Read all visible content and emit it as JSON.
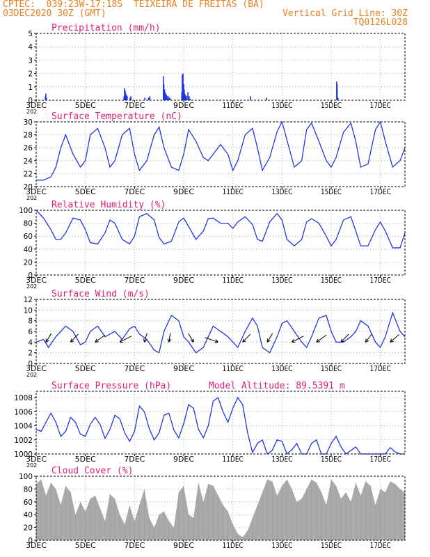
{
  "header": {
    "line1": "CPTEC:  039:23W-17:18S  TEIXEIRA DE FREITAS (BA)",
    "line2_left": "03DEC2020 30Z (GMT)",
    "line2_right": "Vertical Grid Line: 30Z",
    "code": "TQ0126L028"
  },
  "colors": {
    "header": "#e8801f",
    "panel_title": "#e0207a",
    "line": "#2236e0",
    "bars": "#2236e0",
    "cloud": "#aaaaaa",
    "grid": "#9a9a9a"
  },
  "x_axis": {
    "tick_labels": [
      "3DEC",
      "5DEC",
      "7DEC",
      "9DEC",
      "11DEC",
      "13DEC",
      "15DEC",
      "17DEC"
    ],
    "tick_days": [
      0,
      2,
      4,
      6,
      8,
      10,
      12,
      14
    ],
    "range_days": [
      0,
      15
    ],
    "sub_label": "202"
  },
  "chart_data": [
    {
      "type": "bar",
      "title": "Precipitation (mm/h)",
      "ylim": [
        0,
        5
      ],
      "yticks": [
        0,
        1,
        2,
        3,
        4,
        5
      ],
      "x": [
        0.35,
        0.37,
        0.39,
        3.55,
        3.57,
        3.6,
        3.62,
        3.65,
        3.68,
        3.8,
        3.83,
        4.4,
        4.55,
        4.6,
        5.15,
        5.17,
        5.2,
        5.22,
        5.25,
        5.28,
        5.3,
        5.35,
        5.4,
        5.45,
        5.9,
        5.92,
        5.95,
        5.98,
        6.0,
        6.02,
        6.05,
        6.1,
        6.15,
        6.2,
        6.25,
        8.7,
        9.35,
        12.2,
        12.22,
        12.25
      ],
      "values": [
        0.3,
        0.5,
        0.2,
        0.3,
        0.9,
        0.7,
        0.5,
        0.4,
        0.3,
        0.2,
        0.3,
        0.2,
        0.2,
        0.3,
        1.8,
        1.2,
        0.8,
        0.6,
        0.5,
        0.4,
        0.3,
        0.3,
        0.2,
        0.1,
        0.6,
        1.9,
        2.0,
        1.2,
        0.8,
        0.5,
        0.4,
        0.3,
        0.6,
        0.3,
        0.1,
        0.3,
        0.2,
        1.4,
        1.2,
        0.2
      ]
    },
    {
      "type": "line",
      "title": "Surface Temperature (nC)",
      "ylim": [
        20,
        30
      ],
      "yticks": [
        20,
        22,
        24,
        26,
        28,
        30
      ],
      "x": [
        0,
        0.3,
        0.6,
        0.8,
        1.0,
        1.2,
        1.5,
        1.8,
        2.0,
        2.2,
        2.5,
        2.8,
        3.0,
        3.2,
        3.5,
        3.8,
        4.0,
        4.2,
        4.5,
        4.8,
        5.0,
        5.2,
        5.5,
        5.8,
        6.0,
        6.2,
        6.5,
        6.8,
        7.0,
        7.2,
        7.5,
        7.8,
        8.0,
        8.2,
        8.5,
        8.8,
        9.0,
        9.2,
        9.5,
        9.8,
        10.0,
        10.2,
        10.5,
        10.8,
        11.0,
        11.2,
        11.5,
        11.8,
        12.0,
        12.2,
        12.5,
        12.8,
        13.0,
        13.2,
        13.5,
        13.8,
        14.0,
        14.2,
        14.5,
        14.8,
        15.0
      ],
      "values": [
        21,
        21,
        21.5,
        23,
        26,
        28,
        25,
        23,
        24,
        28,
        29,
        26,
        23,
        24,
        28,
        29,
        25,
        22.5,
        24,
        28,
        29.2,
        26,
        23,
        22.5,
        25,
        28.8,
        27,
        24.5,
        24,
        25,
        26.5,
        25,
        22.5,
        24,
        28,
        29,
        26,
        22.5,
        24.5,
        28.5,
        30,
        27.2,
        23,
        24,
        28.8,
        29.8,
        27,
        24,
        23,
        24.5,
        28.4,
        29.8,
        27,
        23,
        23.5,
        28.8,
        30,
        27,
        23,
        24,
        26
      ]
    },
    {
      "type": "line",
      "title": "Relative Humidity (%)",
      "ylim": [
        0,
        100
      ],
      "yticks": [
        0,
        20,
        40,
        60,
        80,
        100
      ],
      "x": [
        0,
        0.3,
        0.6,
        0.8,
        1.0,
        1.2,
        1.5,
        1.8,
        2.0,
        2.2,
        2.5,
        2.8,
        3.0,
        3.2,
        3.5,
        3.8,
        4.0,
        4.2,
        4.5,
        4.8,
        5.0,
        5.2,
        5.5,
        5.8,
        6.0,
        6.2,
        6.5,
        6.8,
        7.0,
        7.2,
        7.5,
        7.8,
        8.0,
        8.2,
        8.5,
        8.8,
        9.0,
        9.2,
        9.5,
        9.8,
        10.0,
        10.2,
        10.5,
        10.8,
        11.0,
        11.2,
        11.5,
        11.8,
        12.0,
        12.2,
        12.5,
        12.8,
        13.0,
        13.2,
        13.5,
        13.8,
        14.0,
        14.2,
        14.5,
        14.8,
        15.0
      ],
      "values": [
        100,
        88,
        70,
        55,
        55,
        65,
        88,
        85,
        70,
        50,
        48,
        65,
        85,
        80,
        55,
        48,
        60,
        90,
        95,
        85,
        58,
        48,
        52,
        82,
        88,
        75,
        55,
        68,
        87,
        88,
        80,
        80,
        72,
        82,
        90,
        78,
        55,
        52,
        82,
        95,
        85,
        55,
        45,
        55,
        82,
        87,
        80,
        60,
        45,
        55,
        85,
        90,
        68,
        45,
        45,
        70,
        82,
        68,
        42,
        42,
        65
      ]
    },
    {
      "type": "line",
      "title": "Surface Wind (m/s)",
      "ylim": [
        0,
        12
      ],
      "yticks": [
        0,
        2,
        4,
        6,
        8,
        10,
        12
      ],
      "x": [
        0,
        0.3,
        0.5,
        0.8,
        1.0,
        1.2,
        1.5,
        1.8,
        2.0,
        2.2,
        2.5,
        2.8,
        3.0,
        3.2,
        3.5,
        3.8,
        4.0,
        4.2,
        4.5,
        4.8,
        5.0,
        5.2,
        5.5,
        5.8,
        6.0,
        6.2,
        6.5,
        6.8,
        7.0,
        7.2,
        7.5,
        7.8,
        8.0,
        8.2,
        8.5,
        8.8,
        9.0,
        9.2,
        9.5,
        9.8,
        10.0,
        10.2,
        10.5,
        10.8,
        11.0,
        11.2,
        11.5,
        11.8,
        12.0,
        12.2,
        12.5,
        12.8,
        13.0,
        13.2,
        13.5,
        13.8,
        14.0,
        14.2,
        14.5,
        14.8,
        15.0
      ],
      "values": [
        4,
        4.5,
        3,
        5,
        6,
        7,
        6,
        3.5,
        4,
        6,
        7,
        5,
        5.5,
        6,
        4.5,
        6.5,
        7,
        5.5,
        4.5,
        2.5,
        2,
        6,
        9,
        8,
        5,
        4,
        2,
        3,
        5,
        7,
        6,
        5,
        4,
        3,
        6,
        8.5,
        7,
        3,
        2,
        5,
        7.5,
        8,
        6,
        4,
        3,
        5,
        8.5,
        9,
        6,
        4,
        4,
        5,
        6,
        8,
        7,
        4,
        3,
        5,
        9.5,
        6,
        5
      ]
    },
    {
      "type": "line",
      "title": "Surface Pressure (hPa)",
      "ylim": [
        1000,
        1008.9
      ],
      "yticks": [
        1000,
        1002,
        1004,
        1006,
        1008
      ],
      "x": [
        0,
        0.2,
        0.4,
        0.6,
        0.8,
        1.0,
        1.2,
        1.4,
        1.6,
        1.8,
        2.0,
        2.2,
        2.4,
        2.6,
        2.8,
        3.0,
        3.2,
        3.4,
        3.6,
        3.8,
        4.0,
        4.2,
        4.4,
        4.6,
        4.8,
        5.0,
        5.2,
        5.4,
        5.6,
        5.8,
        6.0,
        6.2,
        6.4,
        6.6,
        6.8,
        7.0,
        7.2,
        7.4,
        7.6,
        7.8,
        8.0,
        8.2,
        8.4,
        8.6,
        8.8,
        9.0,
        9.2,
        9.4,
        9.6,
        9.8,
        10.0,
        10.2,
        10.4,
        10.6,
        10.8,
        11.0,
        11.2,
        11.4,
        11.6,
        11.8,
        12.0,
        12.2,
        12.4,
        12.6,
        12.8,
        13.0,
        13.2,
        13.4,
        13.6,
        13.8,
        14.0,
        14.2,
        14.4,
        14.6,
        14.8,
        15.0
      ],
      "values": [
        1003.5,
        1003.2,
        1004.5,
        1005.8,
        1004.5,
        1002.5,
        1003.2,
        1005.2,
        1004.5,
        1002.8,
        1002.5,
        1004.2,
        1005.2,
        1004.2,
        1002.2,
        1003.5,
        1005.5,
        1005,
        1003,
        1001.8,
        1003.2,
        1006.8,
        1006,
        1003.6,
        1002,
        1003,
        1005.5,
        1005.8,
        1003.4,
        1002.3,
        1004.3,
        1007,
        1006.5,
        1003.5,
        1002.3,
        1004,
        1007.5,
        1008,
        1006,
        1004.5,
        1006.5,
        1008,
        1007,
        1003,
        1000.2,
        1001.5,
        1002,
        1000,
        1000.5,
        1002,
        1001.8,
        999.2,
        1000.6,
        1001.5,
        999,
        1000,
        1001.5,
        1002,
        1000,
        999.5,
        1001.5,
        1002.5,
        1001,
        999,
        1000.5,
        1001,
        999.2,
        999,
        999.5,
        999.8,
        999,
        999.2,
        1000.9,
        1000.3,
        999.5,
        999
      ]
    },
    {
      "type": "area",
      "title": "Cloud Cover (%)",
      "ylim": [
        0,
        100
      ],
      "yticks": [
        0,
        20,
        40,
        60,
        80,
        100
      ],
      "x": [
        0,
        0.2,
        0.4,
        0.6,
        0.8,
        1.0,
        1.2,
        1.4,
        1.6,
        1.8,
        2.0,
        2.2,
        2.4,
        2.6,
        2.8,
        3.0,
        3.2,
        3.4,
        3.6,
        3.8,
        4.0,
        4.2,
        4.4,
        4.6,
        4.8,
        5.0,
        5.2,
        5.4,
        5.6,
        5.8,
        6.0,
        6.2,
        6.4,
        6.6,
        6.8,
        7.0,
        7.2,
        7.4,
        7.6,
        7.8,
        8.0,
        8.2,
        8.4,
        8.6,
        8.8,
        9.0,
        9.2,
        9.4,
        9.6,
        9.8,
        10.0,
        10.2,
        10.4,
        10.6,
        10.8,
        11.0,
        11.2,
        11.4,
        11.6,
        11.8,
        12.0,
        12.2,
        12.4,
        12.6,
        12.8,
        13.0,
        13.2,
        13.4,
        13.6,
        13.8,
        14.0,
        14.2,
        14.4,
        14.6,
        14.8,
        15.0
      ],
      "values": [
        88,
        95,
        70,
        90,
        80,
        55,
        85,
        75,
        40,
        60,
        45,
        65,
        70,
        50,
        30,
        72,
        65,
        40,
        25,
        55,
        30,
        55,
        80,
        35,
        20,
        40,
        45,
        30,
        20,
        75,
        85,
        40,
        35,
        90,
        60,
        88,
        85,
        70,
        55,
        45,
        25,
        10,
        5,
        15,
        35,
        55,
        75,
        95,
        92,
        70,
        85,
        95,
        80,
        60,
        65,
        80,
        95,
        90,
        75,
        55,
        95,
        85,
        65,
        75,
        60,
        90,
        70,
        92,
        85,
        55,
        80,
        75,
        92,
        88,
        80,
        75
      ]
    },
    {
      "type": "vector",
      "title": "Surface Wind direction",
      "x": [
        0.4,
        1.4,
        2.4,
        3.4,
        4.4,
        5.4,
        6.4,
        7.4,
        8.4,
        9.4,
        10.4,
        11.4,
        12.4,
        13.4,
        14.4
      ],
      "directions_deg": [
        70,
        60,
        50,
        40,
        80,
        85,
        110,
        150,
        60,
        70,
        40,
        50,
        60,
        65,
        55
      ]
    }
  ],
  "panels": [
    {
      "title": "Precipitation (mm/h)"
    },
    {
      "title": "Surface Temperature (nC)"
    },
    {
      "title": "Relative Humidity (%)"
    },
    {
      "title": "Surface Wind (m/s)"
    },
    {
      "title": "Surface Pressure (hPa)",
      "extra": "Model Altitude: 89.5391 m"
    },
    {
      "title": "Cloud Cover (%)"
    }
  ]
}
